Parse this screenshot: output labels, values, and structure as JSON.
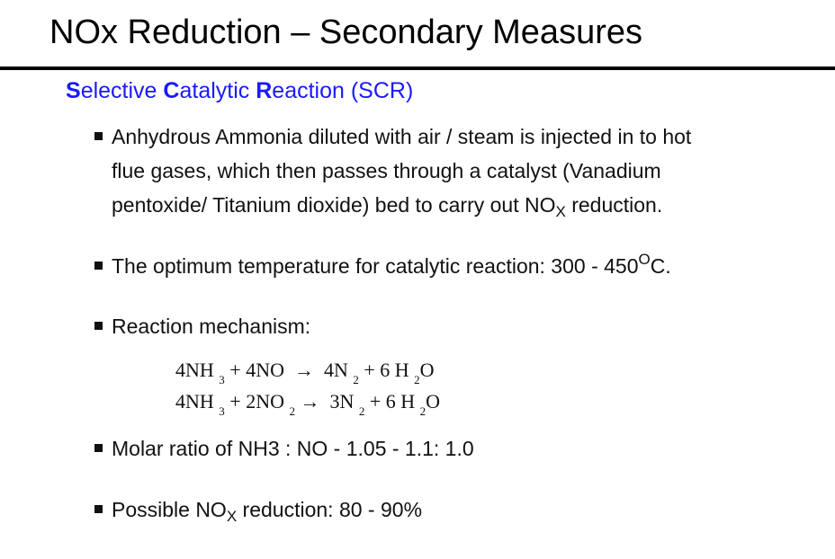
{
  "title": "NOx Reduction – Secondary Measures",
  "subtitle": {
    "s_letter": "S",
    "s_rest": "elective ",
    "c_letter": "C",
    "c_rest": "atalytic ",
    "r_letter": "R",
    "r_rest": "eaction (SCR)"
  },
  "bullets": {
    "b1": {
      "line1": "Anhydrous Ammonia diluted with air / steam is injected in to hot",
      "line2": "flue gases, which then passes through a catalyst (Vanadium",
      "line3_pre": "pentoxide/ Titanium dioxide) bed to carry out NO",
      "line3_sub": "X",
      "line3_post": " reduction."
    },
    "b2": {
      "pre": "The optimum temperature for catalytic reaction: 300 - 450",
      "sup": "O",
      "post": "C."
    },
    "b3": {
      "text": "Reaction mechanism:"
    },
    "b4": {
      "text": "Molar ratio of NH3 : NO - 1.05 - 1.1: 1.0"
    },
    "b5": {
      "pre": "Possible NO",
      "sub": "X",
      "post": " reduction: 80 - 90%"
    }
  },
  "equations": {
    "eq1": {
      "a": "4NH ",
      "a_sub": "3",
      "b": " + 4NO  →  4N ",
      "b_sub": "2",
      "c": " + 6 H ",
      "c_sub": "2",
      "d": "O"
    },
    "eq2": {
      "a": "4NH ",
      "a_sub": "3",
      "b": " + 2NO ",
      "b_sub": "2",
      "c": " →  3N ",
      "c_sub": "2",
      "d": " + 6 H ",
      "d_sub": "2",
      "e": "O"
    }
  },
  "colors": {
    "subtitle": "#1a1aff",
    "text": "#111111",
    "rule": "#000000"
  }
}
